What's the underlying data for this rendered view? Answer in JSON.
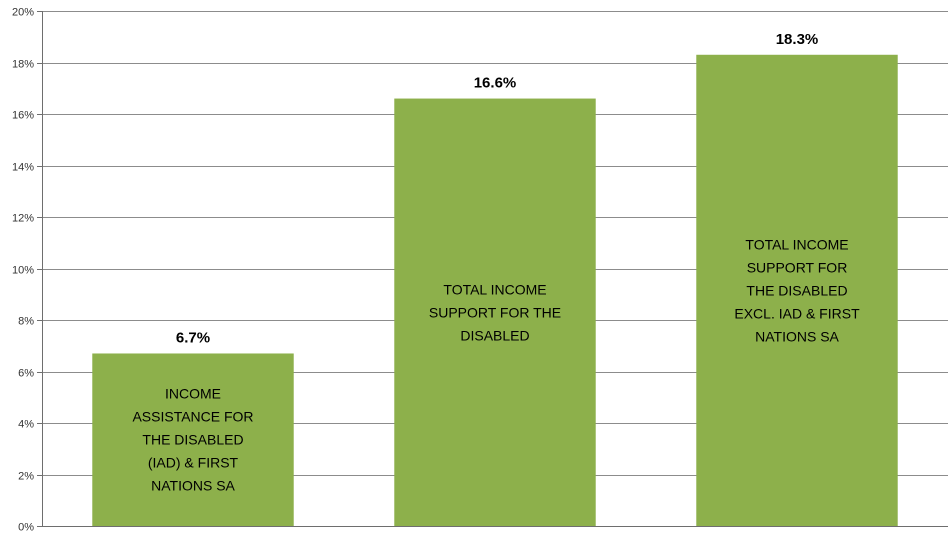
{
  "chart_data": {
    "type": "bar",
    "title": "",
    "xlabel": "",
    "ylabel": "",
    "ylim": [
      0,
      20
    ],
    "y_ticks": [
      "0%",
      "2%",
      "4%",
      "6%",
      "8%",
      "10%",
      "12%",
      "14%",
      "16%",
      "18%",
      "20%"
    ],
    "grid": true,
    "legend": "none",
    "bar_color": "#8db04b",
    "grid_color": "#8c8c8c",
    "categories": [
      "INCOME ASSISTANCE FOR THE DISABLED (IAD) & FIRST NATIONS SA",
      "TOTAL INCOME SUPPORT FOR THE DISABLED",
      "TOTAL INCOME SUPPORT FOR THE DISABLED EXCL. IAD & FIRST NATIONS SA"
    ],
    "category_lines": [
      [
        "INCOME",
        "ASSISTANCE FOR",
        "THE DISABLED",
        "(IAD) & FIRST",
        "NATIONS SA"
      ],
      [
        "TOTAL INCOME",
        "SUPPORT FOR THE",
        "DISABLED"
      ],
      [
        "TOTAL INCOME",
        "SUPPORT FOR",
        "THE DISABLED",
        "EXCL. IAD & FIRST",
        "NATIONS SA"
      ]
    ],
    "values": [
      6.7,
      16.6,
      18.3
    ],
    "data_labels": [
      "6.7%",
      "16.6%",
      "18.3%"
    ]
  }
}
